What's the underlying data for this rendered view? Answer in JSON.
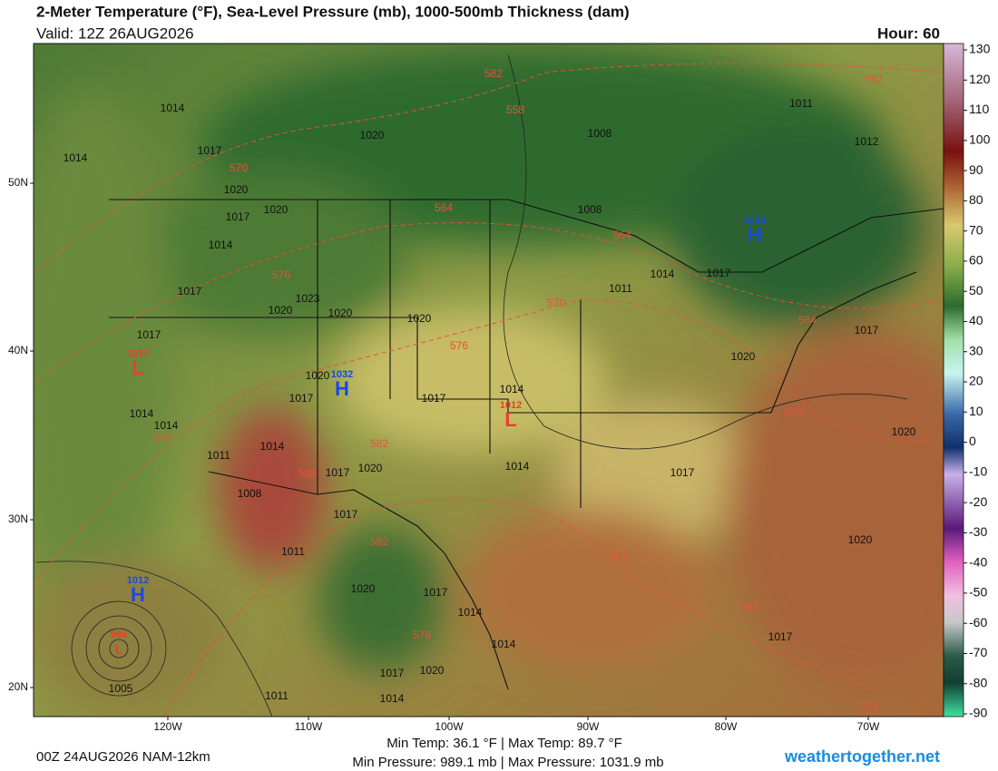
{
  "header": {
    "title": "2-Meter Temperature (°F), Sea-Level Pressure (mb), 1000-500mb Thickness (dam)",
    "valid": "Valid: 12Z 26AUG2026",
    "hour": "Hour: 60"
  },
  "colorbar": {
    "ticks": [
      130,
      120,
      110,
      100,
      90,
      80,
      70,
      60,
      50,
      40,
      30,
      20,
      10,
      0,
      -10,
      -20,
      -30,
      -40,
      -50,
      -60,
      -70,
      -80,
      -90
    ]
  },
  "map": {
    "lat_labels": [
      "50N",
      "40N",
      "30N",
      "20N"
    ],
    "lon_labels": [
      "120W",
      "110W",
      "100W",
      "90W",
      "80W",
      "70W"
    ],
    "pressure_centers": [
      {
        "type": "H",
        "value": "1019"
      },
      {
        "type": "H",
        "value": "1032"
      },
      {
        "type": "H",
        "value": "1012"
      },
      {
        "type": "L",
        "value": "1013"
      },
      {
        "type": "L",
        "value": "1012"
      },
      {
        "type": "L",
        "value": "989"
      }
    ],
    "isobar_labels": [
      "1014",
      "1017",
      "1014",
      "1020",
      "1017",
      "1020",
      "1014",
      "1017",
      "1023",
      "1020",
      "1020",
      "1020",
      "1017",
      "1020",
      "1008",
      "1011",
      "1012",
      "1008",
      "1014",
      "1017",
      "1011",
      "1017",
      "1020",
      "1014",
      "1017",
      "1017",
      "1020",
      "1014",
      "1014",
      "1011",
      "1014",
      "1017",
      "1020",
      "1014",
      "1017",
      "1020",
      "1008",
      "1017",
      "1011",
      "1020",
      "1020",
      "1017",
      "1014",
      "1014",
      "1017",
      "1017",
      "1020",
      "1014",
      "1011",
      "1005"
    ],
    "thickness_labels": [
      "582",
      "558",
      "570",
      "564",
      "564",
      "576",
      "570",
      "564",
      "576",
      "570",
      "582",
      "582",
      "588",
      "582",
      "576",
      "576",
      "582",
      "582",
      "576"
    ]
  },
  "footer": {
    "run": "00Z 24AUG2026 NAM-12km",
    "temps": "Min Temp:  36.1 °F | Max Temp:  89.7 °F",
    "pressures": "Min Pressure: 989.1 mb | Max Pressure: 1031.9 mb",
    "site": "weathertogether.net"
  }
}
